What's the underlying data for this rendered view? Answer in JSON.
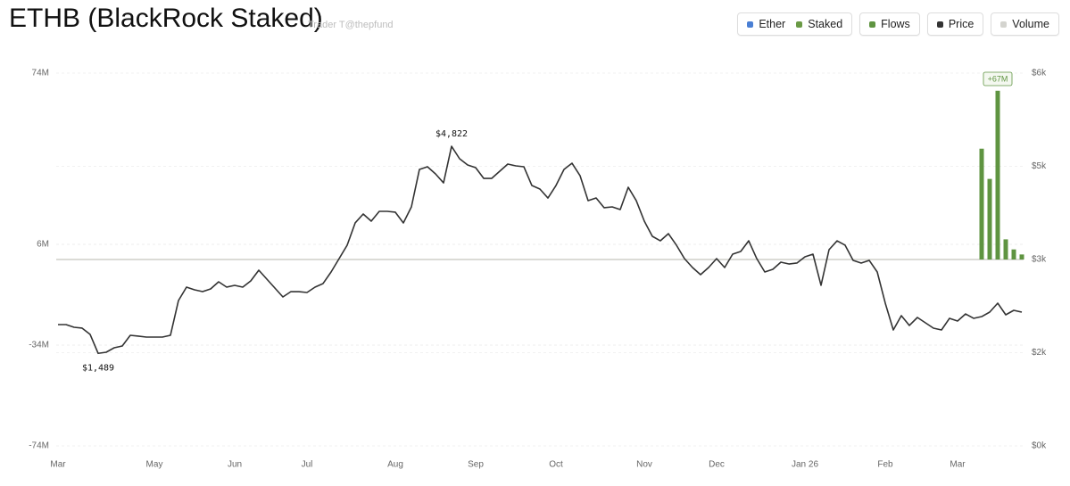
{
  "chart_data": {
    "type": "combo",
    "title": "ETHB (BlackRock Staked)",
    "subtitle": "Trader T@thepfund",
    "categories": [
      "Mar",
      null,
      null,
      null,
      null,
      null,
      null,
      null,
      null,
      null,
      null,
      null,
      "May",
      null,
      null,
      null,
      null,
      null,
      null,
      null,
      null,
      null,
      "Jun",
      null,
      null,
      null,
      null,
      null,
      null,
      null,
      null,
      "Jul",
      null,
      null,
      null,
      null,
      null,
      null,
      null,
      null,
      null,
      null,
      "Aug",
      null,
      null,
      null,
      null,
      null,
      null,
      null,
      null,
      null,
      "Sep",
      null,
      null,
      null,
      null,
      null,
      null,
      null,
      null,
      null,
      "Oct",
      null,
      null,
      null,
      null,
      null,
      null,
      null,
      null,
      null,
      null,
      "Nov",
      null,
      null,
      null,
      null,
      null,
      null,
      null,
      null,
      "Dec",
      null,
      null,
      null,
      null,
      null,
      null,
      null,
      null,
      null,
      null,
      "Jan 26",
      null,
      null,
      null,
      null,
      null,
      null,
      null,
      null,
      null,
      "Feb",
      null,
      null,
      null,
      null,
      null,
      null,
      null,
      null,
      "Mar",
      null,
      null,
      null,
      null,
      null,
      null,
      null,
      null
    ],
    "ylim": [
      -74,
      74
    ],
    "yticks": [
      {
        "value": -74,
        "label": "-74M"
      },
      {
        "value": -34,
        "label": "-34M"
      },
      {
        "value": 6,
        "label": "6M"
      },
      {
        "value": 74,
        "label": "74M"
      }
    ],
    "y2lim": [
      0,
      6000
    ],
    "y2ticks": [
      {
        "value": 0,
        "label": "$0k"
      },
      {
        "value": 1500,
        "label": "$2k"
      },
      {
        "value": 3000,
        "label": "$3k"
      },
      {
        "value": 4500,
        "label": "$5k"
      },
      {
        "value": 6000,
        "label": "$6k"
      }
    ],
    "grid": true,
    "series": [
      {
        "name": "Flows",
        "type": "bar",
        "axis": "y",
        "color": "#5f9441",
        "values": [
          null,
          null,
          null,
          null,
          null,
          null,
          null,
          null,
          null,
          null,
          null,
          null,
          null,
          null,
          null,
          null,
          null,
          null,
          null,
          null,
          null,
          null,
          null,
          null,
          null,
          null,
          null,
          null,
          null,
          null,
          null,
          null,
          null,
          null,
          null,
          null,
          null,
          null,
          null,
          null,
          null,
          null,
          null,
          null,
          null,
          null,
          null,
          null,
          null,
          null,
          null,
          null,
          null,
          null,
          null,
          null,
          null,
          null,
          null,
          null,
          null,
          null,
          null,
          null,
          null,
          null,
          null,
          null,
          null,
          null,
          null,
          null,
          null,
          null,
          null,
          null,
          null,
          null,
          null,
          null,
          null,
          null,
          null,
          null,
          null,
          null,
          null,
          null,
          null,
          null,
          null,
          null,
          null,
          null,
          null,
          null,
          null,
          null,
          null,
          null,
          null,
          null,
          null,
          null,
          null,
          null,
          null,
          null,
          null,
          null,
          null,
          null,
          null,
          null,
          null,
          44,
          32,
          67,
          8,
          4,
          2
        ],
        "value_labels": [
          null,
          null,
          null,
          null,
          null,
          null,
          null,
          null,
          null,
          null,
          null,
          null,
          null,
          null,
          null,
          null,
          null,
          null,
          null,
          null,
          null,
          null,
          null,
          null,
          null,
          null,
          null,
          null,
          null,
          null,
          null,
          null,
          null,
          null,
          null,
          null,
          null,
          null,
          null,
          null,
          null,
          null,
          null,
          null,
          null,
          null,
          null,
          null,
          null,
          null,
          null,
          null,
          null,
          null,
          null,
          null,
          null,
          null,
          null,
          null,
          null,
          null,
          null,
          null,
          null,
          null,
          null,
          null,
          null,
          null,
          null,
          null,
          null,
          null,
          null,
          null,
          null,
          null,
          null,
          null,
          null,
          null,
          null,
          null,
          null,
          null,
          null,
          null,
          null,
          null,
          null,
          null,
          null,
          null,
          null,
          null,
          null,
          null,
          null,
          null,
          null,
          null,
          null,
          null,
          null,
          null,
          null,
          null,
          null,
          null,
          null,
          null,
          null,
          null,
          null,
          null,
          null,
          "+67M",
          null,
          null,
          null
        ]
      },
      {
        "name": "Price",
        "type": "line",
        "axis": "y2",
        "color": "#333333",
        "values": [
          1952,
          1952,
          1909,
          1895,
          1794,
          1489,
          1507,
          1579,
          1608,
          1780,
          1766,
          1751,
          1751,
          1751,
          1780,
          2340,
          2555,
          2512,
          2483,
          2526,
          2641,
          2555,
          2584,
          2555,
          2656,
          2828,
          2684,
          2541,
          2397,
          2483,
          2483,
          2469,
          2555,
          2613,
          2799,
          3014,
          3230,
          3589,
          3732,
          3617,
          3775,
          3775,
          3761,
          3589,
          3847,
          4450,
          4493,
          4378,
          4234,
          4822,
          4622,
          4522,
          4478,
          4306,
          4306,
          4421,
          4536,
          4507,
          4493,
          4191,
          4134,
          3990,
          4191,
          4450,
          4550,
          4349,
          3947,
          3990,
          3833,
          3847,
          3804,
          4163,
          3947,
          3617,
          3373,
          3301,
          3416,
          3230,
          3014,
          2871,
          2756,
          2871,
          3014,
          2871,
          3086,
          3129,
          3301,
          3014,
          2799,
          2842,
          2957,
          2928,
          2943,
          3043,
          3086,
          2584,
          3158,
          3301,
          3230,
          2986,
          2943,
          2986,
          2799,
          2297,
          1866,
          2096,
          1938,
          2067,
          1981,
          1895,
          1866,
          2053,
          2010,
          2124,
          2053,
          2081,
          2153,
          2297,
          2110,
          2182,
          2153
        ],
        "value_labels": [
          null,
          null,
          null,
          null,
          null,
          "$1,489",
          null,
          null,
          null,
          null,
          null,
          null,
          null,
          null,
          null,
          null,
          null,
          null,
          null,
          null,
          null,
          null,
          null,
          null,
          null,
          null,
          null,
          null,
          null,
          null,
          null,
          null,
          null,
          null,
          null,
          null,
          null,
          null,
          null,
          null,
          null,
          null,
          null,
          null,
          null,
          null,
          null,
          null,
          null,
          "$4,822",
          null,
          null,
          null,
          null,
          null,
          null,
          null,
          null,
          null,
          null,
          null,
          null,
          null,
          null,
          null,
          null,
          null,
          null,
          null,
          null,
          null,
          null,
          null,
          null,
          null,
          null,
          null,
          null,
          null,
          null,
          null,
          null,
          null,
          null,
          null,
          null,
          null,
          null,
          null,
          null,
          null,
          null,
          null,
          null,
          null,
          null,
          null,
          null,
          null,
          null,
          null,
          null,
          null,
          null,
          null,
          null,
          null,
          null,
          null,
          null,
          null,
          null,
          null,
          null,
          null,
          null,
          null,
          null,
          null,
          null,
          null
        ]
      }
    ],
    "extra_legend": [
      {
        "name": "Ether",
        "color": "#4a7fd4"
      },
      {
        "name": "Staked",
        "color": "#6a9a45"
      },
      {
        "name": "Volume",
        "color": "#d4d4cf"
      }
    ]
  }
}
